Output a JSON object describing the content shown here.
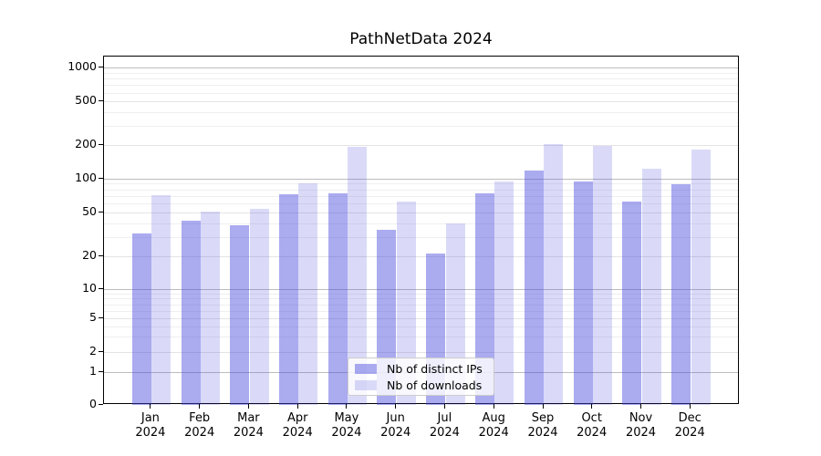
{
  "title": "PathNetData 2024",
  "legend": {
    "items": [
      {
        "label": "Nb of distinct IPs",
        "series_key": "distinct_ips"
      },
      {
        "label": "Nb of downloads",
        "series_key": "downloads"
      }
    ]
  },
  "colors": {
    "bar_base": "#4444dd",
    "distinct_ips_fill": "rgba(68,68,221,0.45)",
    "downloads_fill": "rgba(68,68,221,0.20)",
    "grid_major": "#bdbdbd",
    "grid_minor": "#efefef",
    "axis": "#000000"
  },
  "y_axis": {
    "tick_labels": [
      "0",
      "1",
      "2",
      "5",
      "10",
      "20",
      "50",
      "100",
      "200",
      "500",
      "1000"
    ]
  },
  "x_axis": {
    "months": [
      "Jan",
      "Feb",
      "Mar",
      "Apr",
      "May",
      "Jun",
      "Jul",
      "Aug",
      "Sep",
      "Oct",
      "Nov",
      "Dec"
    ],
    "year": "2024"
  },
  "chart_data": {
    "type": "bar",
    "title": "PathNetData 2024",
    "categories": [
      "Jan 2024",
      "Feb 2024",
      "Mar 2024",
      "Apr 2024",
      "May 2024",
      "Jun 2024",
      "Jul 2024",
      "Aug 2024",
      "Sep 2024",
      "Oct 2024",
      "Nov 2024",
      "Dec 2024"
    ],
    "series": [
      {
        "name": "Nb of distinct IPs",
        "key": "distinct_ips",
        "values": [
          32,
          42,
          38,
          73,
          74,
          35,
          21,
          74,
          118,
          95,
          63,
          89
        ]
      },
      {
        "name": "Nb of downloads",
        "key": "downloads",
        "values": [
          71,
          51,
          54,
          90,
          193,
          62,
          40,
          94,
          203,
          196,
          123,
          181
        ]
      }
    ],
    "yscale": "symlog-like",
    "yticks": [
      0,
      1,
      2,
      5,
      10,
      20,
      50,
      100,
      200,
      500,
      1000
    ],
    "ylim": [
      0,
      1270
    ],
    "xlabel": "",
    "ylabel": "",
    "grid": true,
    "legend_position": "lower center"
  }
}
